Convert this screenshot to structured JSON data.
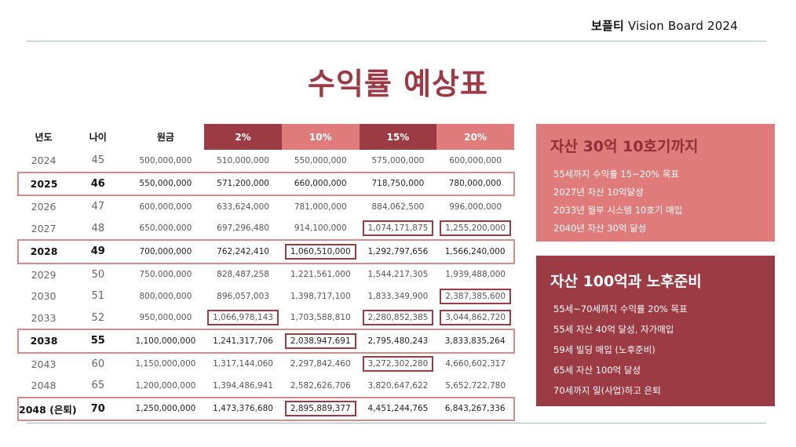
{
  "brand": {
    "name": "보플티",
    "suffix": "Vision Board 2024"
  },
  "title": "수익률 예상표",
  "table": {
    "headers": [
      "년도",
      "나이",
      "원금",
      "2%",
      "10%",
      "15%",
      "20%"
    ],
    "rows": [
      {
        "year": "2024",
        "age": "45",
        "principal": "500,000,000",
        "r2": "510,000,000",
        "r10": "550,000,000",
        "r15": "575,000,000",
        "r20": "600,000,000"
      },
      {
        "year": "2025",
        "age": "46",
        "principal": "550,000,000",
        "r2": "571,200,000",
        "r10": "660,000,000",
        "r15": "718,750,000",
        "r20": "780,000,000"
      },
      {
        "year": "2026",
        "age": "47",
        "principal": "600,000,000",
        "r2": "633,624,000",
        "r10": "781,000,000",
        "r15": "884,062,500",
        "r20": "996,000,000"
      },
      {
        "year": "2027",
        "age": "48",
        "principal": "650,000,000",
        "r2": "697,296,480",
        "r10": "914,100,000",
        "r15": "1,074,171,875",
        "r20": "1,255,200,000"
      },
      {
        "year": "2028",
        "age": "49",
        "principal": "700,000,000",
        "r2": "762,242,410",
        "r10": "1,060,510,000",
        "r15": "1,292,797,656",
        "r20": "1,566,240,000"
      },
      {
        "year": "2029",
        "age": "50",
        "principal": "750,000,000",
        "r2": "828,487,258",
        "r10": "1,221,561,000",
        "r15": "1,544,217,305",
        "r20": "1,939,488,000"
      },
      {
        "year": "2030",
        "age": "51",
        "principal": "800,000,000",
        "r2": "896,057,003",
        "r10": "1,398,717,100",
        "r15": "1,833,349,900",
        "r20": "2,387,385,600"
      },
      {
        "year": "2033",
        "age": "52",
        "principal": "950,000,000",
        "r2": "1,066,978,143",
        "r10": "1,703,588,810",
        "r15": "2,280,852,385",
        "r20": "3,044,862,720"
      },
      {
        "year": "2038",
        "age": "55",
        "principal": "1,100,000,000",
        "r2": "1,241,317,706",
        "r10": "2,038,947,691",
        "r15": "2,795,480,243",
        "r20": "3,833,835,264"
      },
      {
        "year": "2043",
        "age": "60",
        "principal": "1,150,000,000",
        "r2": "1,317,144,060",
        "r10": "2,297,842,460",
        "r15": "3,272,302,280",
        "r20": "4,660,602,317"
      },
      {
        "year": "2048",
        "age": "65",
        "principal": "1,200,000,000",
        "r2": "1,394,486,941",
        "r10": "2,582,626,706",
        "r15": "3,820,647,622",
        "r20": "5,652,722,780"
      },
      {
        "year": "2048 (은퇴)",
        "age": "70",
        "principal": "1,250,000,000",
        "r2": "1,473,376,680",
        "r10": "2,895,889,377",
        "r15": "4,451,244,765",
        "r20": "6,843,267,336"
      }
    ]
  },
  "goals1": {
    "title": "자산 30억 10호기까지",
    "items": [
      "55세까지 수익률 15~20% 목표",
      "2027년 자산 10억달성",
      "2033년 월부 시스템 10호기 매입",
      "2040년 자산 30억 달성"
    ]
  },
  "goals2": {
    "title": "자산 100억과 노후준비",
    "items": [
      "55세~70세까지 수익률 20% 목표",
      "55세 자산 40억 달성, 자가매입",
      "59세 빌딩 매입 (노후준비)",
      "65세 자산 100억 달성",
      "70세까지 일(사업)하고 은퇴"
    ]
  },
  "colors": {
    "maroon": "#9c3b44",
    "coral": "#e07b7b",
    "rule": "#9fbdb6"
  }
}
